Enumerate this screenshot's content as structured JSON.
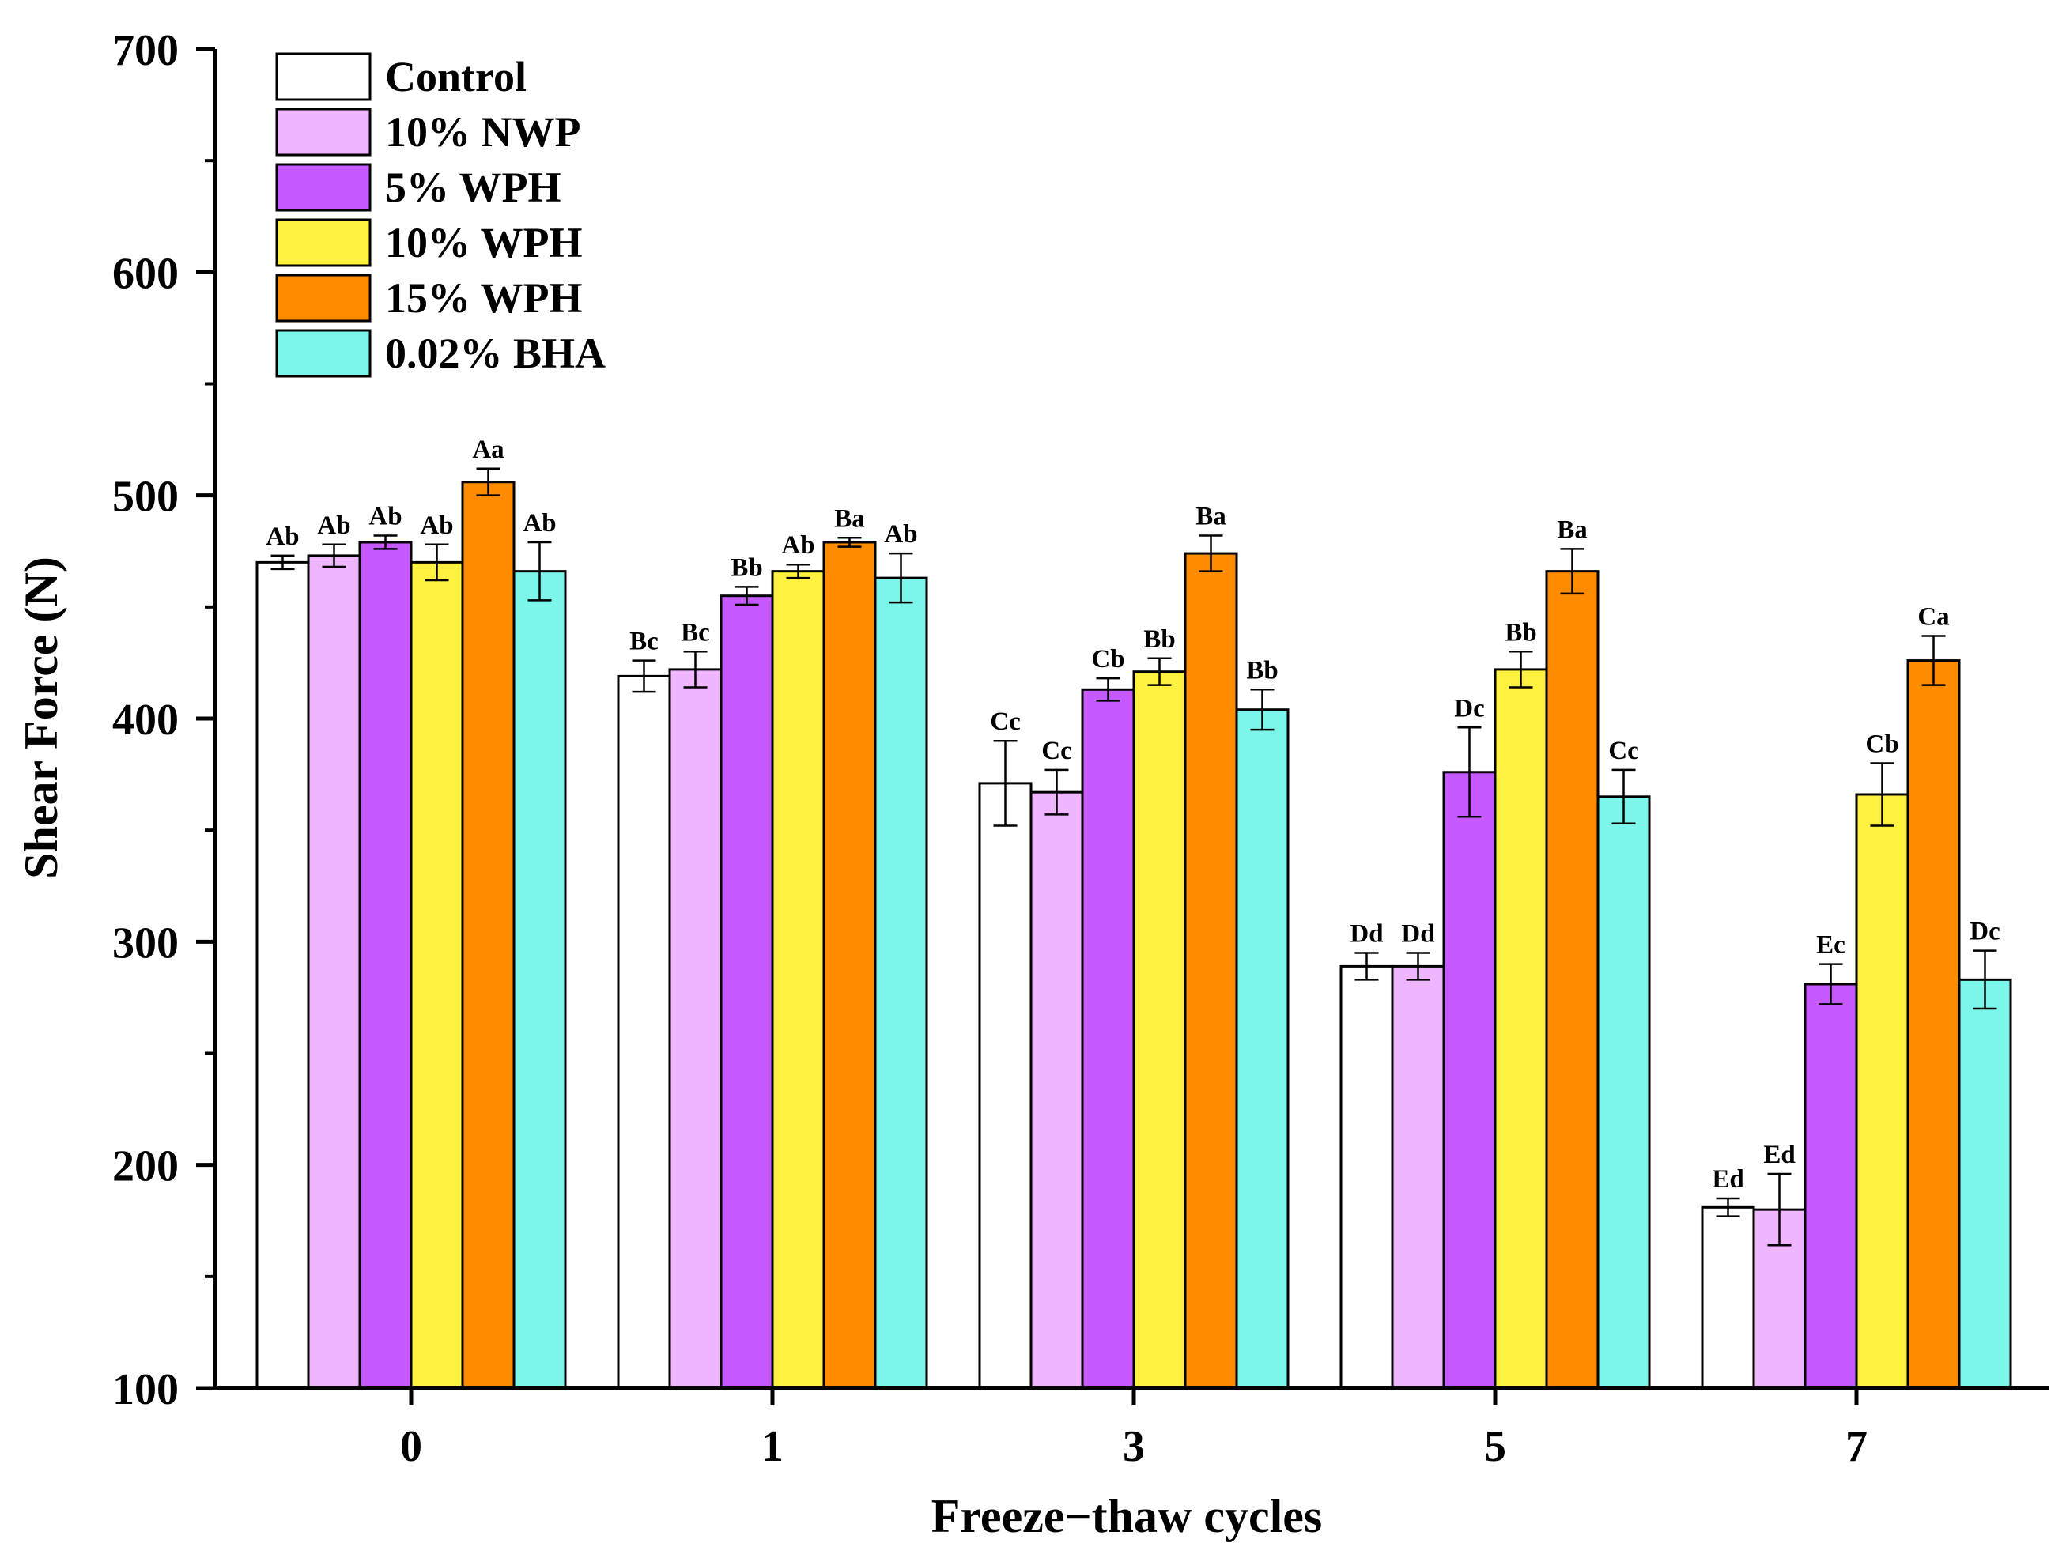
{
  "chart_data": {
    "type": "bar",
    "title": "",
    "xlabel": "Freeze−thaw cycles",
    "ylabel": "Shear Force (N)",
    "ylim": [
      100,
      700
    ],
    "yticks": [
      100,
      200,
      300,
      400,
      500,
      600,
      700
    ],
    "categories": [
      "0",
      "1",
      "3",
      "5",
      "7"
    ],
    "grid": false,
    "legend_position": "top-left",
    "series": [
      {
        "name": "Control",
        "color": "#FFFFFF",
        "values": [
          470,
          419,
          371,
          289,
          181
        ],
        "errors": [
          3,
          7,
          19,
          6,
          4
        ],
        "labels": [
          "Ab",
          "Bc",
          "Cc",
          "Dd",
          "Ed"
        ]
      },
      {
        "name": "10% NWP",
        "color": "#EFB5FF",
        "values": [
          473,
          422,
          367,
          289,
          180
        ],
        "errors": [
          5,
          8,
          10,
          6,
          16
        ],
        "labels": [
          "Ab",
          "Bc",
          "Cc",
          "Dd",
          "Ed"
        ]
      },
      {
        "name": "5% WPH",
        "color": "#C659FF",
        "values": [
          479,
          455,
          413,
          376,
          281
        ],
        "errors": [
          3,
          4,
          5,
          20,
          9
        ],
        "labels": [
          "Ab",
          "Bb",
          "Cb",
          "Dc",
          "Ec"
        ]
      },
      {
        "name": "10% WPH",
        "color": "#FFF13F",
        "values": [
          470,
          466,
          421,
          422,
          366
        ],
        "errors": [
          8,
          3,
          6,
          8,
          14
        ],
        "labels": [
          "Ab",
          "Ab",
          "Bb",
          "Bb",
          "Cb"
        ]
      },
      {
        "name": "15% WPH",
        "color": "#FF8C00",
        "values": [
          506,
          479,
          474,
          466,
          426
        ],
        "errors": [
          6,
          2,
          8,
          10,
          11
        ],
        "labels": [
          "Aa",
          "Ba",
          "Ba",
          "Ba",
          "Ca"
        ]
      },
      {
        "name": "0.02% BHA",
        "color": "#7CF5EB",
        "values": [
          466,
          463,
          404,
          365,
          283
        ],
        "errors": [
          13,
          11,
          9,
          12,
          13
        ],
        "labels": [
          "Ab",
          "Ab",
          "Bb",
          "Cc",
          "Dc"
        ]
      }
    ]
  }
}
